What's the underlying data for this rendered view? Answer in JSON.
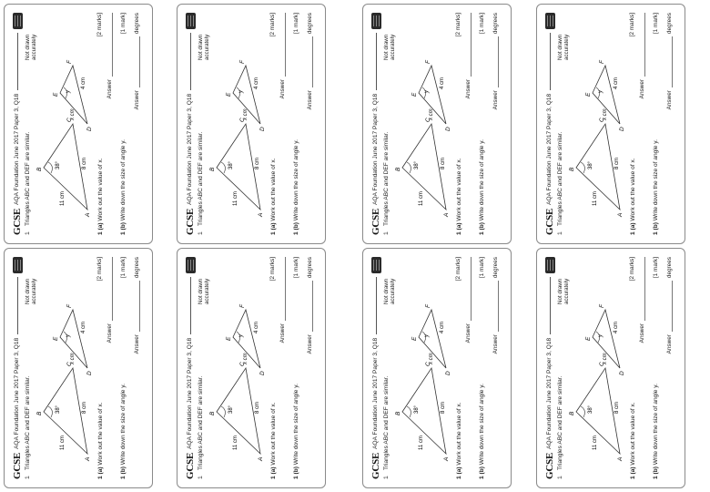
{
  "exam": {
    "logo": "GCSE",
    "source_title": "AQA Foundation June 2017 Paper 3, Q18",
    "question_number": "1",
    "stem": "Triangles ABC and DEF are similar.",
    "not_drawn": "Not drawn accurately"
  },
  "diagram": {
    "labels": {
      "A": "A",
      "B": "B",
      "C": "C",
      "D": "D",
      "E": "E",
      "F": "F",
      "len_ab": "11 cm",
      "len_ac": "8 cm",
      "angle_b": "38°",
      "len_de": "x cm",
      "len_df": "4 cm",
      "angle_e": "y"
    }
  },
  "part_a": {
    "label": "1 (a)",
    "text": "Work out the value of x.",
    "marks": "[2 marks]",
    "answer": "Answer"
  },
  "part_b": {
    "label": "1 (b)",
    "text": "Write down the size of angle y.",
    "marks": "[1 mark]",
    "answer": "Answer",
    "unit": "degrees"
  },
  "cards": [
    {
      "id": 1
    },
    {
      "id": 2
    },
    {
      "id": 3
    },
    {
      "id": 4
    },
    {
      "id": 5
    },
    {
      "id": 6
    },
    {
      "id": 7
    },
    {
      "id": 8
    }
  ]
}
